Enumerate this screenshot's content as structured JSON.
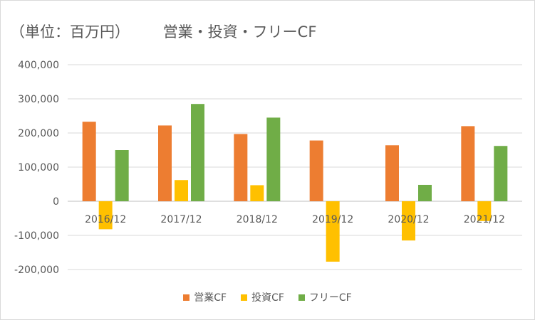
{
  "header": {
    "unit_note": "（単位：百万円）",
    "title": "営業・投資・フリーCF"
  },
  "chart_data": {
    "type": "bar",
    "categories": [
      "2016/12",
      "2017/12",
      "2018/12",
      "2019/12",
      "2020/12",
      "2021/12"
    ],
    "series": [
      {
        "name": "営業CF",
        "color": "#ED7D31",
        "values": [
          233000,
          222000,
          197000,
          178000,
          164000,
          220000
        ]
      },
      {
        "name": "投資CF",
        "color": "#FFC000",
        "values": [
          -82000,
          62000,
          47000,
          -177000,
          -115000,
          -58000
        ]
      },
      {
        "name": "フリーCF",
        "color": "#70AD47",
        "values": [
          150000,
          285000,
          245000,
          0,
          48000,
          162000
        ]
      }
    ],
    "ylim": [
      -200000,
      400000
    ],
    "yticks": [
      400000,
      300000,
      200000,
      100000,
      0,
      -100000,
      -200000
    ],
    "ytick_labels": [
      "400,000",
      "300,000",
      "200,000",
      "100,000",
      "0",
      "-100,000",
      "-200,000"
    ],
    "grid": true,
    "legend_position": "bottom"
  }
}
